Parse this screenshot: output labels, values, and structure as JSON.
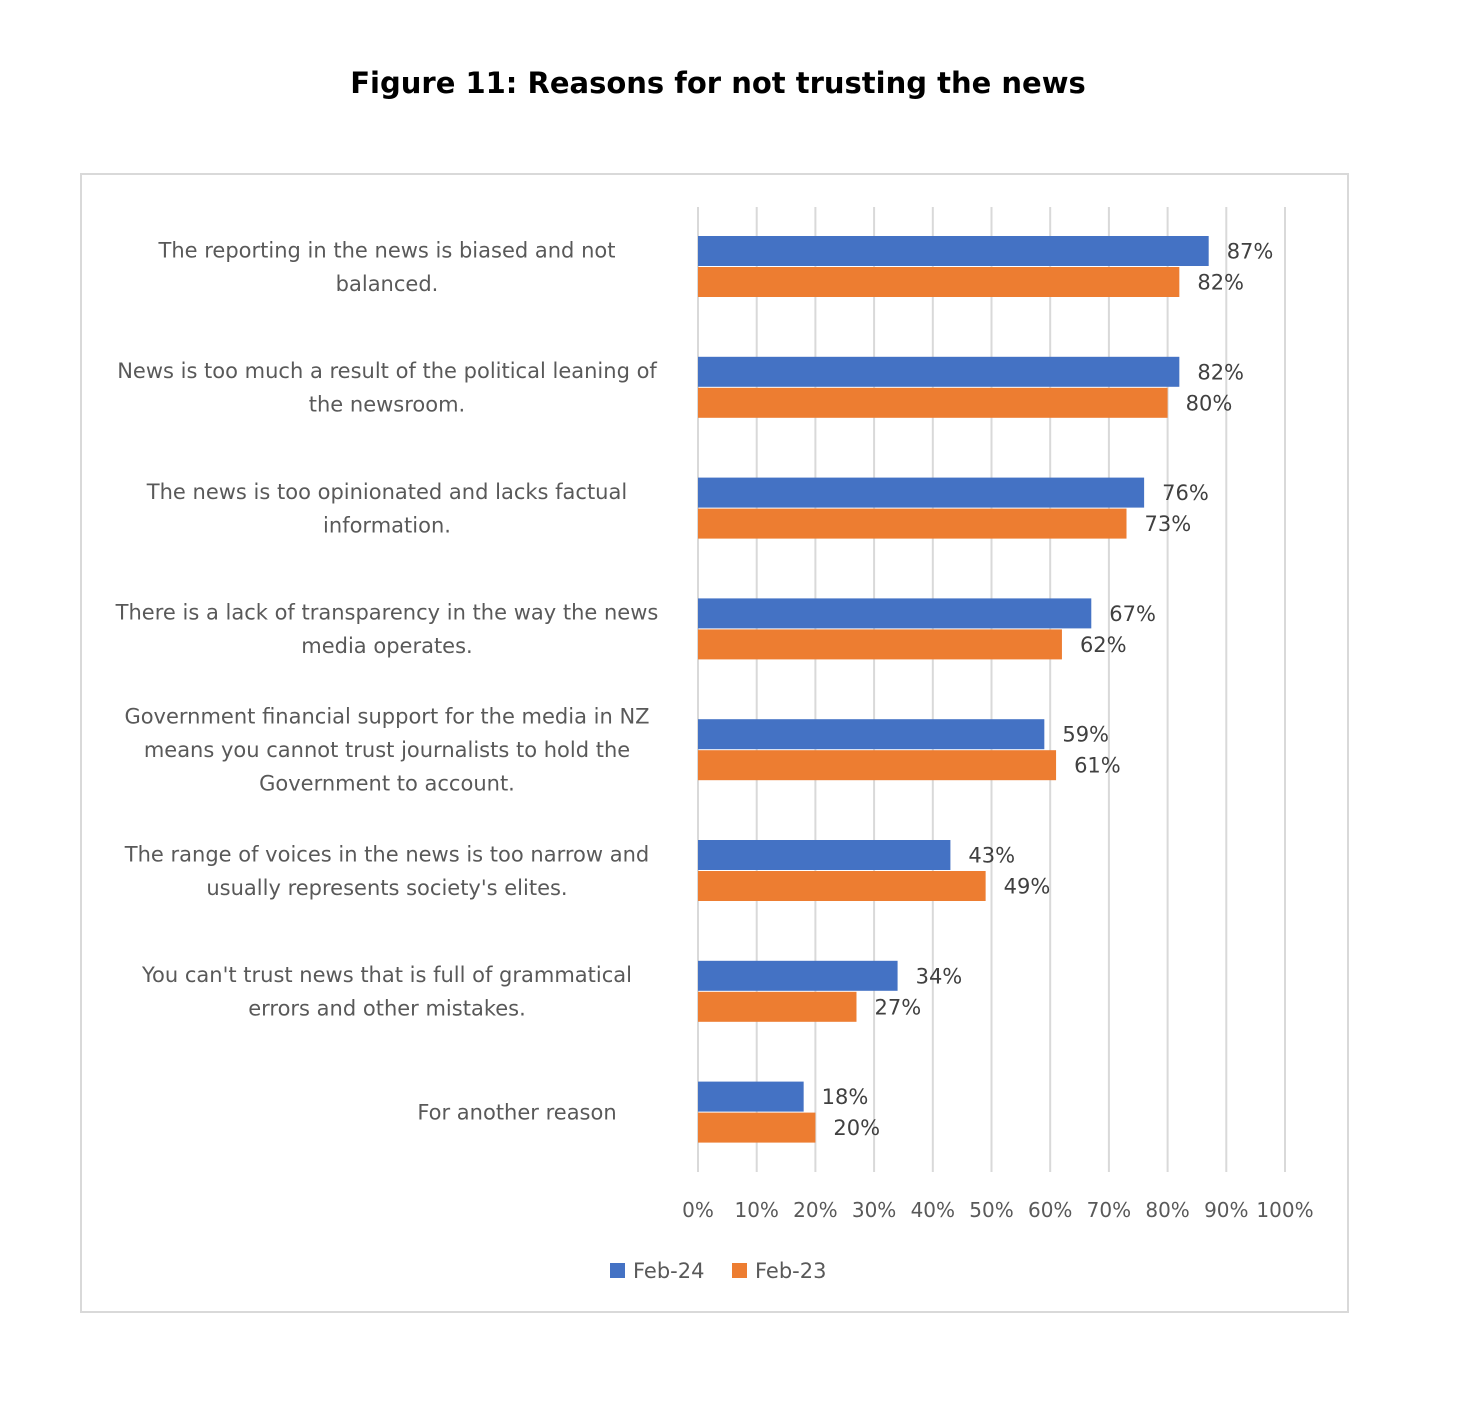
{
  "chart_data": {
    "type": "bar",
    "orientation": "horizontal",
    "title": "Figure 11: Reasons for not trusting the news",
    "categories": [
      [
        "The reporting in the news is biased and not",
        "balanced."
      ],
      [
        "News is too much a result of the political leaning of",
        "the newsroom."
      ],
      [
        "The news is too opinionated and lacks factual",
        "information."
      ],
      [
        "There is a lack of transparency in the way the news",
        "media operates."
      ],
      [
        "Government financial support for the media in NZ",
        "means you cannot trust journalists to hold the",
        "Government to account."
      ],
      [
        "The range of voices in the news is too narrow and",
        "usually represents society's elites."
      ],
      [
        "You can't trust news that is full of grammatical",
        "errors and other mistakes."
      ],
      [
        "For another reason"
      ]
    ],
    "series": [
      {
        "name": "Feb-24",
        "color": "#4472c4",
        "values": [
          87,
          82,
          76,
          67,
          59,
          43,
          34,
          18
        ]
      },
      {
        "name": "Feb-23",
        "color": "#ed7d31",
        "values": [
          82,
          80,
          73,
          62,
          61,
          49,
          27,
          20
        ]
      }
    ],
    "value_suffix": "%",
    "xlim": [
      0,
      100
    ],
    "xticks": [
      "0%",
      "10%",
      "20%",
      "30%",
      "40%",
      "50%",
      "60%",
      "70%",
      "80%",
      "90%",
      "100%"
    ],
    "grid": true,
    "legend_position": "bottom"
  }
}
